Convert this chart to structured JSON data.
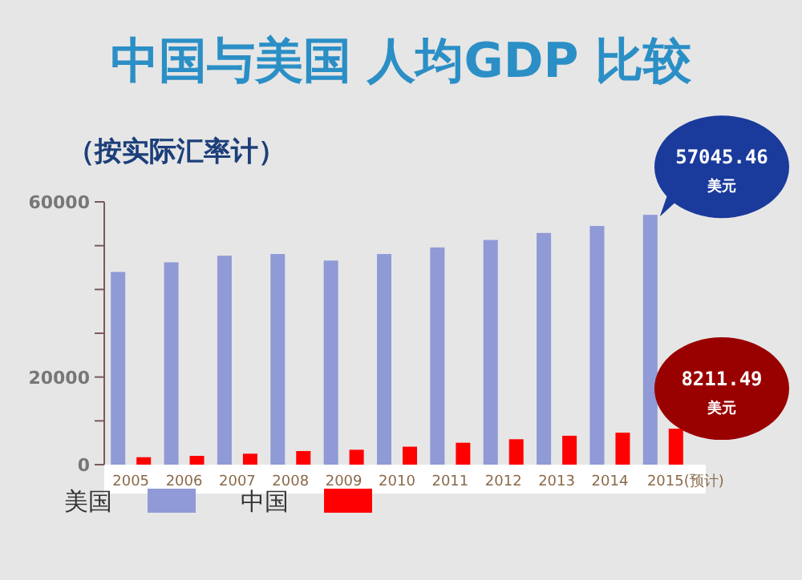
{
  "chart_data": {
    "type": "bar",
    "title": "中国与美国 人均GDP 比较",
    "subtitle": "（按实际汇率计）",
    "categories": [
      "2005",
      "2006",
      "2007",
      "2008",
      "2009",
      "2010",
      "2011",
      "2012",
      "2013",
      "2014",
      "2015(预计)"
    ],
    "series": [
      {
        "name": "美国",
        "color": "#8f9ad6",
        "values": [
          44000,
          46200,
          47700,
          48100,
          46600,
          48100,
          49600,
          51300,
          52900,
          54500,
          57045.46
        ]
      },
      {
        "name": "中国",
        "color": "#ff0000",
        "values": [
          1700,
          2000,
          2500,
          3100,
          3400,
          4100,
          5000,
          5800,
          6600,
          7300,
          8211.49
        ]
      }
    ],
    "annotations": [
      "57045.46\n美元",
      "8211.49\n美元"
    ],
    "ylim": [
      0,
      60000
    ],
    "yticks": [
      0,
      {
        "value": 10000,
        "label": null
      },
      20000,
      {
        "value": 30000,
        "label": null
      },
      {
        "value": 40000,
        "label": null
      },
      {
        "value": 50000,
        "label": null
      },
      60000
    ],
    "legend": "bottom"
  }
}
